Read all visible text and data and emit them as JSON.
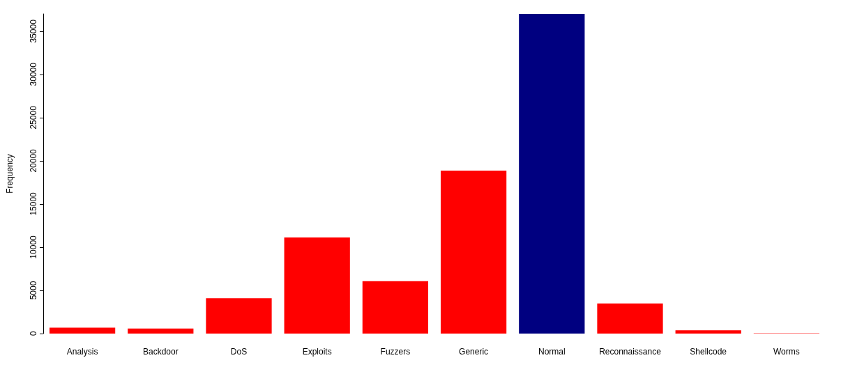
{
  "chart_data": {
    "type": "bar",
    "ylabel": "Frequency",
    "categories": [
      "Analysis",
      "Backdoor",
      "DoS",
      "Exploits",
      "Fuzzers",
      "Generic",
      "Normal",
      "Reconnaissance",
      "Shellcode",
      "Worms"
    ],
    "values": [
      677,
      583,
      4089,
      11132,
      6062,
      18871,
      37000,
      3496,
      378,
      44
    ],
    "colors": [
      "#ff0000",
      "#ff0000",
      "#ff0000",
      "#ff0000",
      "#ff0000",
      "#ff0000",
      "#000080",
      "#ff0000",
      "#ff0000",
      "#ff0000"
    ],
    "ylim": [
      0,
      37000
    ],
    "yticks": [
      0,
      5000,
      10000,
      15000,
      20000,
      25000,
      30000,
      35000
    ],
    "grid": false
  }
}
